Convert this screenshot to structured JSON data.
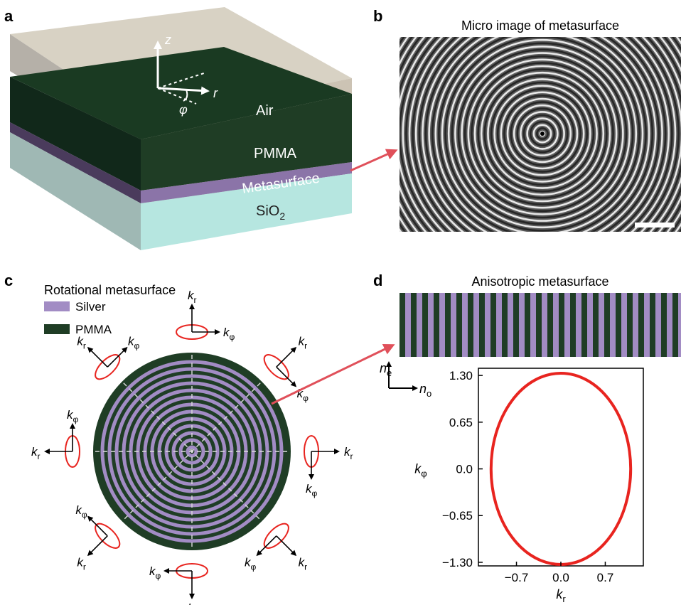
{
  "panels": {
    "a": {
      "letter": "a",
      "layers": [
        "Air",
        "PMMA",
        "Metasurface",
        "SiO",
        "2"
      ],
      "axes": {
        "z": "z",
        "r": "r",
        "phi": "φ"
      }
    },
    "b": {
      "letter": "b",
      "title": "Micro image of metasurface"
    },
    "c": {
      "letter": "c",
      "title": "Rotational metasurface",
      "legend": [
        {
          "label": "Silver",
          "color": "#a28cc4"
        },
        {
          "label": "PMMA",
          "color": "#1f3d25"
        }
      ],
      "k_labels": {
        "k": "k",
        "r": "r",
        "phi": "φ"
      }
    },
    "d": {
      "letter": "d",
      "title": "Anisotropic metasurface",
      "stripe_colors": [
        "#1f3d25",
        "#a28cc4"
      ],
      "n_labels": {
        "n": "n",
        "e": "e",
        "o": "o"
      }
    }
  },
  "colors": {
    "silver": "#a28cc4",
    "pmma": "#1f3d25",
    "ellipse": "#e8241f",
    "arrow": "#e0505a",
    "glass": "#b6e6e0",
    "air_box": "#c9c0b0"
  },
  "chart_data": {
    "type": "line",
    "xlabel": "k",
    "xlabel_sub": "r",
    "ylabel": "k",
    "ylabel_sub": "φ",
    "xticks": [
      -0.7,
      0.0,
      0.7
    ],
    "xtick_labels": [
      "−0.7",
      "0.0",
      "0.7"
    ],
    "yticks": [
      -1.3,
      -0.65,
      0.0,
      0.65,
      1.3
    ],
    "ytick_labels": [
      "−1.30",
      "−0.65",
      "0.0",
      "0.65",
      "1.30"
    ],
    "xlim": [
      -1.3,
      1.3
    ],
    "ylim": [
      -1.35,
      1.4
    ],
    "grid": false,
    "series": [
      {
        "shape": "ellipse",
        "center": [
          0,
          0
        ],
        "semi_axis_x": 1.1,
        "semi_axis_y": 1.33,
        "color": "#e8241f"
      }
    ]
  }
}
